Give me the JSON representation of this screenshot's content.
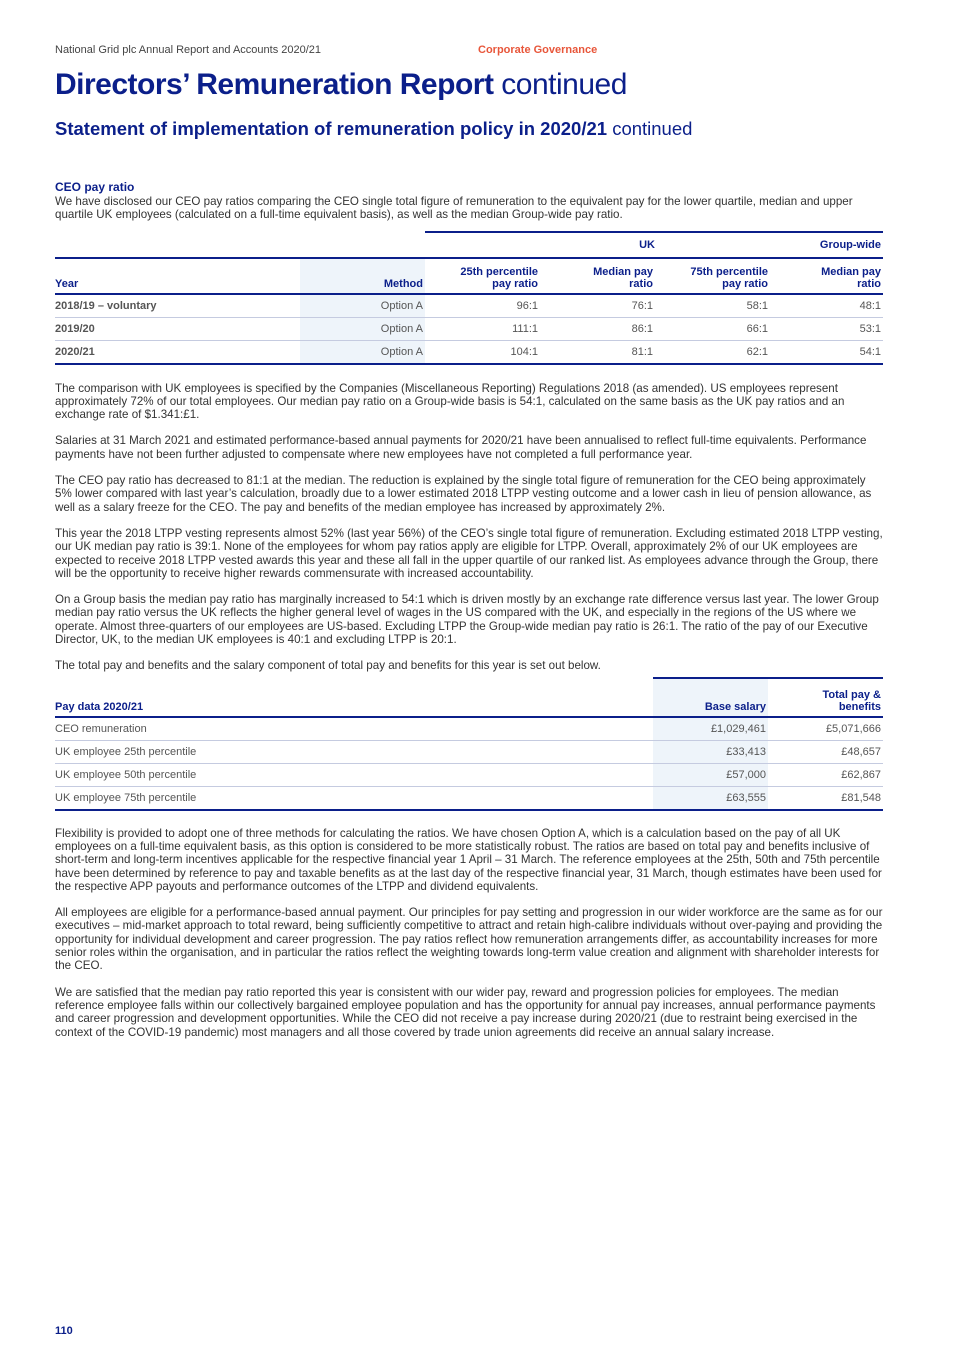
{
  "header": {
    "report_name": "National Grid plc Annual Report and Accounts 2020/21",
    "section": "Corporate Governance",
    "accent_color": "#e8563a",
    "brand_color": "#0b1f8a"
  },
  "title": {
    "bold": "Directors’ Remuneration Report",
    "light": "continued"
  },
  "subtitle": {
    "bold": "Statement of implementation of remuneration policy in 2020/21",
    "light": "continued"
  },
  "ceo_section": {
    "heading": "CEO pay ratio",
    "intro": "We have disclosed our CEO pay ratios comparing the CEO single total figure of remuneration to the equivalent pay for the lower quartile, median and upper quartile UK employees (calculated on a full-time equivalent basis), as well as the median Group-wide pay ratio."
  },
  "ratio_table": {
    "group_headers": {
      "uk": "UK",
      "group": "Group-wide"
    },
    "columns": [
      "Year",
      "Method",
      "25th percentile pay ratio",
      "Median pay ratio",
      "75th percentile pay ratio",
      "Median pay ratio"
    ],
    "rows": [
      [
        "2018/19 – voluntary",
        "Option A",
        "96:1",
        "76:1",
        "58:1",
        "48:1"
      ],
      [
        "2019/20",
        "Option A",
        "111:1",
        "86:1",
        "66:1",
        "53:1"
      ],
      [
        "2020/21",
        "Option A",
        "104:1",
        "81:1",
        "62:1",
        "54:1"
      ]
    ]
  },
  "paragraphs_1": [
    "The comparison with UK employees is specified by the Companies (Miscellaneous Reporting) Regulations 2018 (as amended). US employees represent approximately 72% of our total employees. Our median pay ratio on a Group-wide basis is 54:1, calculated on the same basis as the UK pay ratios and an exchange rate of $1.341:£1.",
    "Salaries at 31 March 2021 and estimated performance-based annual payments for 2020/21 have been annualised to reflect full-time equivalents. Performance payments have not been further adjusted to compensate where new employees have not completed a full performance year.",
    "The CEO pay ratio has decreased to 81:1 at the median. The reduction is explained by the single total figure of remuneration for the CEO being approximately 5% lower compared with last year’s calculation, broadly due to a lower estimated 2018 LTPP vesting outcome and a lower cash in lieu of pension allowance, as well as a salary freeze for the CEO. The pay and benefits of the median employee has increased by approximately 2%.",
    "This year the 2018 LTPP vesting represents almost 52% (last year 56%) of the CEO’s single total figure of remuneration. Excluding estimated 2018 LTPP vesting, our UK median pay ratio is 39:1. None of the employees for whom pay ratios apply are eligible for LTPP. Overall, approximately 2% of our UK employees are expected to receive 2018 LTPP vested awards this year and these all fall in the upper quartile of our ranked list. As employees advance through the Group, there will be the opportunity to receive higher rewards commensurate with increased accountability.",
    "On a Group basis the median pay ratio has marginally increased to 54:1 which is driven mostly by an exchange rate difference versus last year. The lower Group median pay ratio versus the UK reflects the higher general level of wages in the US compared with the UK, and especially in the regions of the US where we operate. Almost three-quarters of our employees are US-based. Excluding LTPP the Group-wide median pay ratio is 26:1. The ratio of the pay of our Executive Director, UK, to the median UK employees is 40:1 and excluding LTPP is 20:1.",
    "The total pay and benefits and the salary component of total pay and benefits for this year is set out below."
  ],
  "pay_table": {
    "columns": [
      "Pay data 2020/21",
      "Base salary",
      "Total pay & benefits"
    ],
    "rows": [
      [
        "CEO remuneration",
        "£1,029,461",
        "£5,071,666"
      ],
      [
        "UK employee 25th percentile",
        "£33,413",
        "£48,657"
      ],
      [
        "UK employee 50th percentile",
        "£57,000",
        "£62,867"
      ],
      [
        "UK employee 75th percentile",
        "£63,555",
        "£81,548"
      ]
    ]
  },
  "paragraphs_2": [
    "Flexibility is provided to adopt one of three methods for calculating the ratios. We have chosen Option A, which is a calculation based on the pay of all UK employees on a full-time equivalent basis, as this option is considered to be more statistically robust. The ratios are based on total pay and benefits inclusive of short-term and long-term incentives applicable for the respective financial year 1 April – 31 March. The reference employees at the 25th, 50th and 75th percentile have been determined by reference to pay and taxable benefits as at the last day of the respective financial year, 31 March, though estimates have been used for the respective APP payouts and performance outcomes of the LTPP and dividend equivalents.",
    "All employees are eligible for a performance-based annual payment. Our principles for pay setting and progression in our wider workforce are the same as for our executives – mid-market approach to total reward, being sufficiently competitive to attract and retain high-calibre individuals without over-paying and providing the opportunity for individual development and career progression. The pay ratios reflect how remuneration arrangements differ, as accountability increases for more senior roles within the organisation, and in particular the ratios reflect the weighting towards long-term value creation and alignment with shareholder interests for the CEO.",
    "We are satisfied that the median pay ratio reported this year is consistent with our wider pay, reward and progression policies for employees. The median reference employee falls within our collectively bargained employee population and has the opportunity for annual pay increases, annual performance payments and career progression and development opportunities. While the CEO did not receive a pay increase during 2020/21 (due to restraint being exercised in the context of the COVID-19 pandemic) most managers and all those covered by trade union agreements did receive an annual salary increase."
  ],
  "page_number": "110"
}
